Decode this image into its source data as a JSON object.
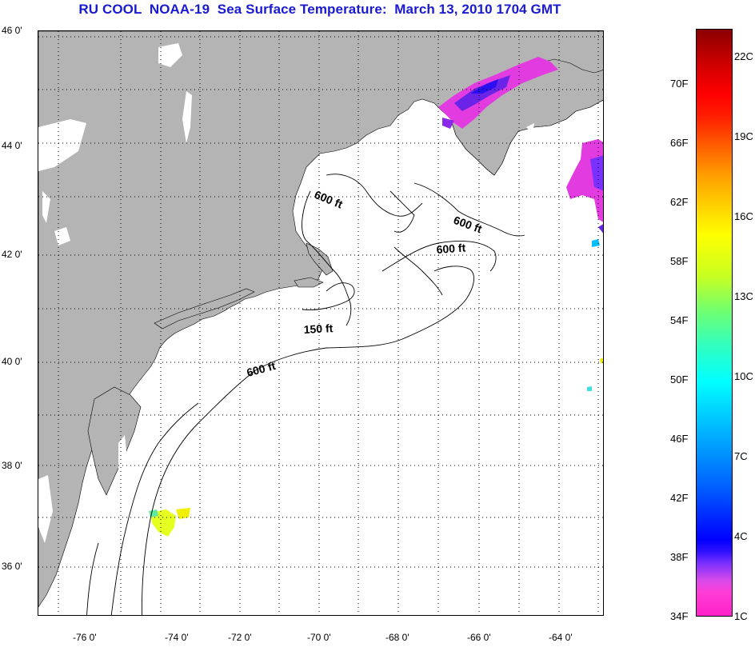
{
  "title": "RU COOL  NOAA-19  Sea Surface Temperature:  March 13, 2010 1704 GMT",
  "map": {
    "latitude_labels": [
      "46 0'",
      "44 0'",
      "42 0'",
      "40 0'",
      "38 0'",
      "36 0'"
    ],
    "longitude_labels": [
      "-76 0'",
      "-74 0'",
      "-72 0'",
      "-70 0'",
      "-68 0'",
      "-66 0'",
      "-64 0'"
    ],
    "depth_contour_labels": [
      "600 ft",
      "600 ft",
      "600 ft",
      "150 ft",
      "600 ft"
    ],
    "colors": {
      "land": "#b4b4b4",
      "ocean_no_data": "#ffffff",
      "contour": "#000000",
      "grid": "#000000"
    }
  },
  "colorbar": {
    "fahrenheit_labels": [
      "70F",
      "66F",
      "62F",
      "58F",
      "54F",
      "50F",
      "46F",
      "42F",
      "38F",
      "34F"
    ],
    "celsius_labels": [
      "22C",
      "19C",
      "16C",
      "13C",
      "10C",
      "7C",
      "4C",
      "1C"
    ]
  }
}
